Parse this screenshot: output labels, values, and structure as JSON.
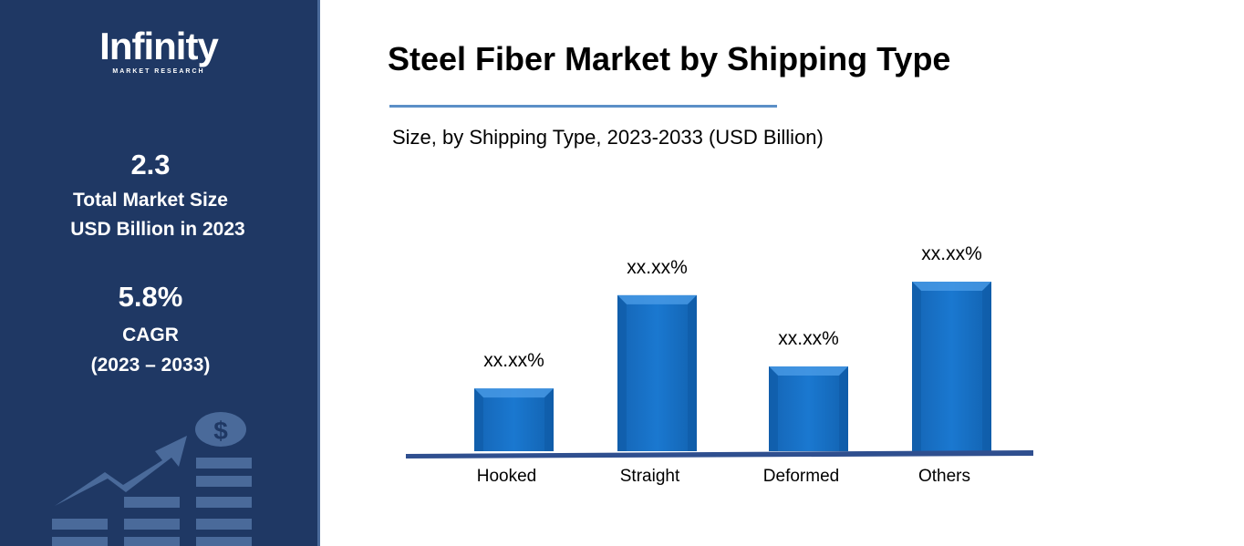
{
  "sidebar": {
    "logo": {
      "name": "Infinity",
      "tagline": "MARKET RESEARCH"
    },
    "market_size_value": "2.3",
    "market_size_label_1": "Total Market Size",
    "market_size_label_2": "USD Billion in 2023",
    "cagr_value": "5.8%",
    "cagr_label": "CAGR",
    "cagr_period": "(2023 – 2033)",
    "colors": {
      "background": "#1f3864",
      "icon": "#4a6a9a"
    }
  },
  "chart_data": {
    "type": "bar",
    "title": "Steel Fiber Market by Shipping Type",
    "subtitle": "Size, by Shipping Type, 2023-2033 (USD Billion)",
    "categories": [
      "Hooked",
      "Straight",
      "Deformed",
      "Others"
    ],
    "values": [
      0.37,
      0.92,
      0.5,
      1.0
    ],
    "data_labels": [
      "xx.xx%",
      "xx.xx%",
      "xx.xx%",
      "xx.xx%"
    ],
    "xlabel": "",
    "ylabel": "",
    "grid": false,
    "bar_color": "#1a73c8",
    "axis_color": "#2f4f8f"
  }
}
